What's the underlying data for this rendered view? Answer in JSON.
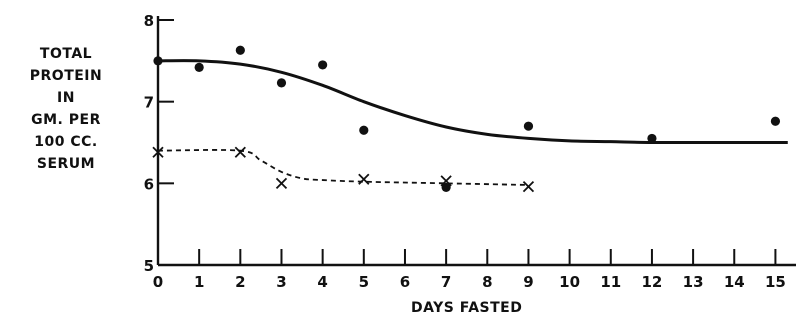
{
  "chart_data": {
    "type": "scatter",
    "ylabel_lines": [
      "TOTAL",
      "PROTEIN",
      "IN",
      "GM. PER",
      "100 CC.",
      "SERUM"
    ],
    "xlabel": "DAYS FASTED",
    "xlim": [
      0,
      15.5
    ],
    "ylim": [
      5,
      8
    ],
    "x_ticks": [
      0,
      1,
      2,
      3,
      4,
      5,
      6,
      7,
      8,
      9,
      10,
      11,
      12,
      13,
      14,
      15
    ],
    "y_ticks": [
      5,
      6,
      7,
      8
    ],
    "grid": false,
    "series": [
      {
        "marker": "dot",
        "line_style": "solid",
        "color": "#111111",
        "points": [
          {
            "x": 0,
            "y": 7.5
          },
          {
            "x": 1,
            "y": 7.42
          },
          {
            "x": 2,
            "y": 7.63
          },
          {
            "x": 3,
            "y": 7.23
          },
          {
            "x": 4,
            "y": 7.45
          },
          {
            "x": 5,
            "y": 6.65
          },
          {
            "x": 7,
            "y": 5.95
          },
          {
            "x": 9,
            "y": 6.7
          },
          {
            "x": 12,
            "y": 6.55
          },
          {
            "x": 15,
            "y": 6.76
          }
        ],
        "fitted_curve": [
          {
            "x": 0,
            "y": 7.5
          },
          {
            "x": 1,
            "y": 7.5
          },
          {
            "x": 2,
            "y": 7.46
          },
          {
            "x": 3,
            "y": 7.36
          },
          {
            "x": 4,
            "y": 7.2
          },
          {
            "x": 5,
            "y": 7.0
          },
          {
            "x": 6,
            "y": 6.83
          },
          {
            "x": 7,
            "y": 6.69
          },
          {
            "x": 8,
            "y": 6.6
          },
          {
            "x": 9,
            "y": 6.55
          },
          {
            "x": 10,
            "y": 6.52
          },
          {
            "x": 11,
            "y": 6.51
          },
          {
            "x": 12,
            "y": 6.5
          },
          {
            "x": 13,
            "y": 6.5
          },
          {
            "x": 14,
            "y": 6.5
          },
          {
            "x": 15.3,
            "y": 6.5
          }
        ]
      },
      {
        "marker": "x",
        "line_style": "dashed",
        "color": "#111111",
        "points": [
          {
            "x": 0,
            "y": 6.38
          },
          {
            "x": 2,
            "y": 6.38
          },
          {
            "x": 3,
            "y": 6.0
          },
          {
            "x": 5,
            "y": 6.05
          },
          {
            "x": 7,
            "y": 6.03
          },
          {
            "x": 9,
            "y": 5.96
          }
        ],
        "fitted_curve": [
          {
            "x": 0,
            "y": 6.4
          },
          {
            "x": 2,
            "y": 6.4
          },
          {
            "x": 2.5,
            "y": 6.28
          },
          {
            "x": 3,
            "y": 6.14
          },
          {
            "x": 3.5,
            "y": 6.06
          },
          {
            "x": 4,
            "y": 6.04
          },
          {
            "x": 5,
            "y": 6.02
          },
          {
            "x": 7,
            "y": 6.0
          },
          {
            "x": 9,
            "y": 5.98
          }
        ]
      }
    ]
  }
}
